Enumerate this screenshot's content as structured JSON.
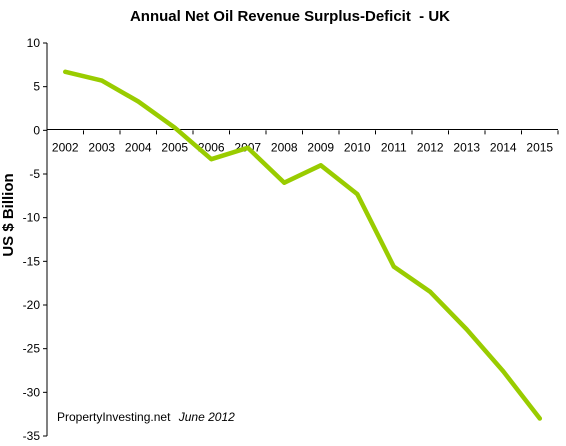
{
  "chart_data": {
    "type": "line",
    "title": "Annual Net Oil Revenue Surplus-Deficit  - UK",
    "ylabel": "US $ Billion",
    "xlabel": "",
    "ylim": [
      -35,
      10
    ],
    "yticks": [
      10,
      5,
      0,
      -5,
      -10,
      -15,
      -20,
      -25,
      -30,
      -35
    ],
    "x": [
      "2002",
      "2003",
      "2004",
      "2005",
      "2006",
      "2007",
      "2008",
      "2009",
      "2010",
      "2011",
      "2012",
      "2013",
      "2014",
      "2015"
    ],
    "series": [
      {
        "values": [
          6.7,
          5.7,
          3.3,
          0.3,
          -3.3,
          -2.0,
          -6.0,
          -4.0,
          -7.3,
          -15.6,
          -18.5,
          -22.8,
          -27.6,
          -33.0
        ],
        "color": "#99cc00"
      }
    ],
    "grid": false,
    "legend": "none",
    "x_labels_position": "on zero line"
  },
  "source_note": {
    "source": "PropertyInvesting.net",
    "date": "June 2012"
  }
}
